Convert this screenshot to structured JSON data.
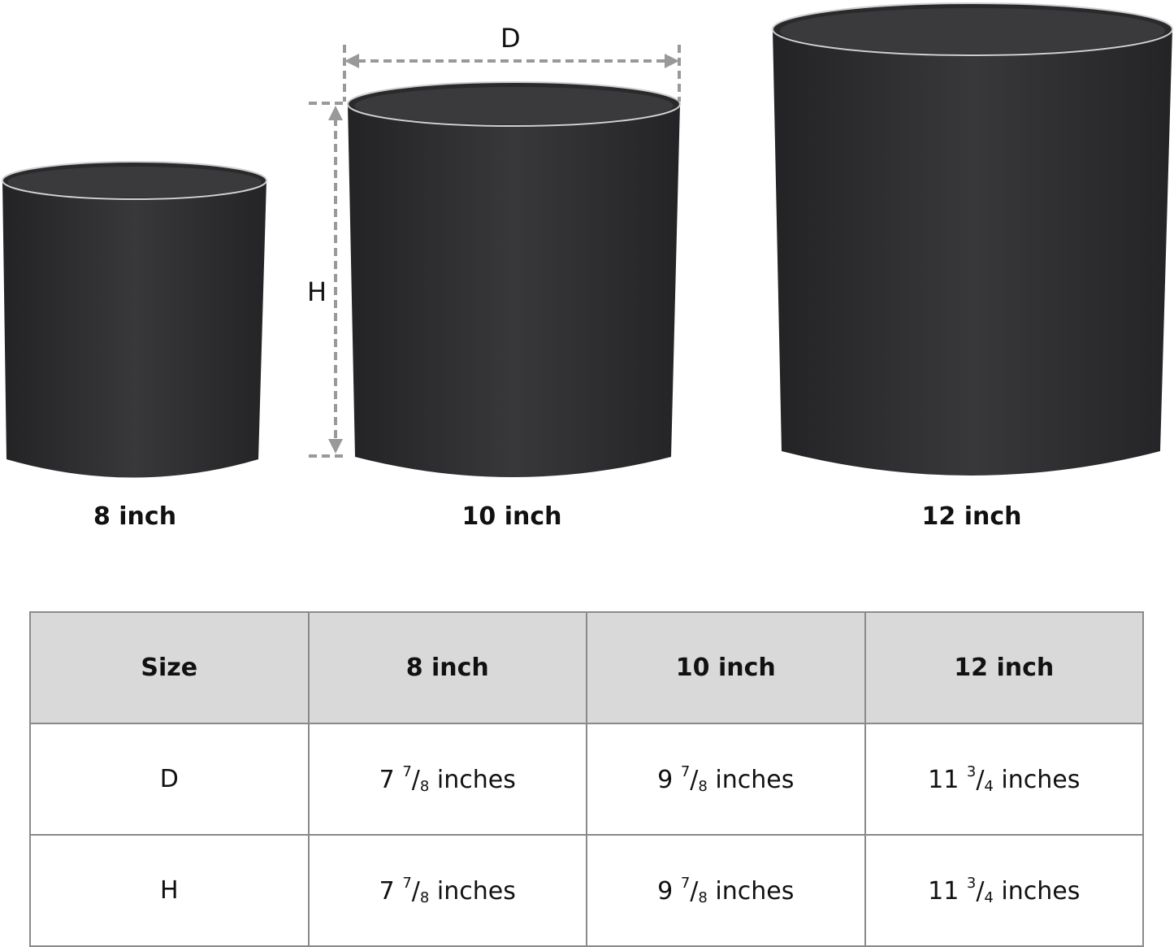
{
  "pots": [
    {
      "label": "8 inch"
    },
    {
      "label": "10 inch"
    },
    {
      "label": "12 inch"
    }
  ],
  "dimension_labels": {
    "diameter": "D",
    "height": "H"
  },
  "colors": {
    "pot": "#2e2e30",
    "dimension_line": "#999999",
    "header_bg": "#d9d9d9",
    "border": "#8a8a8a"
  },
  "table": {
    "headers": [
      "Size",
      "8 inch",
      "10 inch",
      "12 inch"
    ],
    "rows": [
      {
        "label": "D",
        "cells": [
          {
            "whole": "7",
            "num": "7",
            "den": "8",
            "unit": "inches"
          },
          {
            "whole": "9",
            "num": "7",
            "den": "8",
            "unit": "inches"
          },
          {
            "whole": "11",
            "num": "3",
            "den": "4",
            "unit": "inches"
          }
        ]
      },
      {
        "label": "H",
        "cells": [
          {
            "whole": "7",
            "num": "7",
            "den": "8",
            "unit": "inches"
          },
          {
            "whole": "9",
            "num": "7",
            "den": "8",
            "unit": "inches"
          },
          {
            "whole": "11",
            "num": "3",
            "den": "4",
            "unit": "inches"
          }
        ]
      }
    ]
  }
}
